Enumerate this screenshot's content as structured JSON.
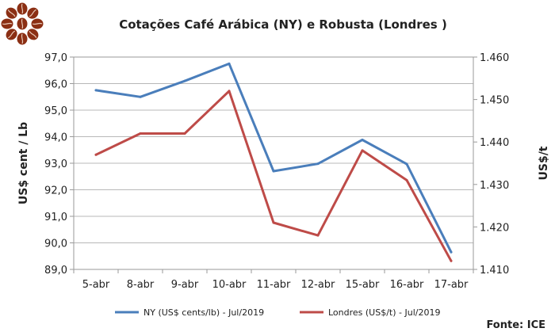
{
  "chart_data": {
    "type": "line",
    "title": "Cotações Café Arábica (NY) e Robusta (Londres )",
    "categories": [
      "5-abr",
      "8-abr",
      "9-abr",
      "10-abr",
      "11-abr",
      "12-abr",
      "15-abr",
      "16-abr",
      "17-abr"
    ],
    "ylabel_left": "US$ cent / Lb",
    "ylabel_right": "US$/t",
    "ylim_left": [
      89.0,
      97.0
    ],
    "ylim_right": [
      1.41,
      1.46
    ],
    "yticks_left": [
      "97,0",
      "96,0",
      "95,0",
      "94,0",
      "93,0",
      "92,0",
      "91,0",
      "90,0",
      "89,0"
    ],
    "yticks_right": [
      "1.460",
      "1.450",
      "1.440",
      "1.430",
      "1.420",
      "1.410"
    ],
    "grid": true,
    "legend_position": "bottom",
    "series": [
      {
        "name": "NY (US$ cents/lb) - Jul/2019",
        "axis": "left",
        "color": "#4a7ebb",
        "values": [
          95.75,
          95.5,
          96.1,
          96.75,
          92.7,
          92.98,
          93.88,
          92.97,
          89.65
        ]
      },
      {
        "name": "Londres (US$/t) - Jul/2019",
        "axis": "right",
        "color": "#be4b48",
        "values": [
          1437,
          1442,
          1442,
          1452,
          1421,
          1418,
          1438,
          1431,
          1412
        ]
      }
    ],
    "source": "Fonte: ICE"
  },
  "logo": {
    "name": "coffee-beans-logo",
    "color": "#8b2f14"
  }
}
